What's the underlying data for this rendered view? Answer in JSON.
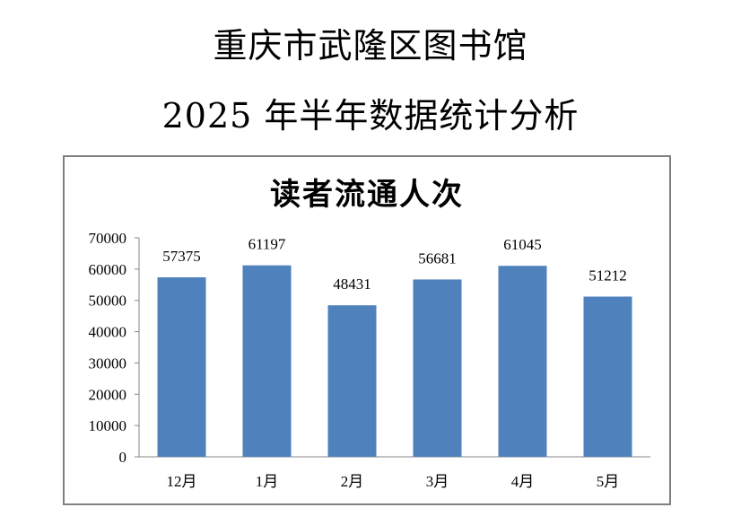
{
  "header": {
    "title_line_1": "重庆市武隆区图书馆",
    "title_line_2": "2025 年半年数据统计分析"
  },
  "chart_data": {
    "type": "bar",
    "title": "读者流通人次",
    "categories": [
      "12月",
      "1月",
      "2月",
      "3月",
      "4月",
      "5月"
    ],
    "values": [
      57375,
      61197,
      48431,
      56681,
      61045,
      51212
    ],
    "ylim": [
      0,
      70000
    ],
    "yticks": [
      0,
      10000,
      20000,
      30000,
      40000,
      50000,
      60000,
      70000
    ],
    "xlabel": "",
    "ylabel": "",
    "grid": false,
    "legend": "none",
    "bar_color": "#4f81bd",
    "frame_color": "#7f7f7f"
  }
}
